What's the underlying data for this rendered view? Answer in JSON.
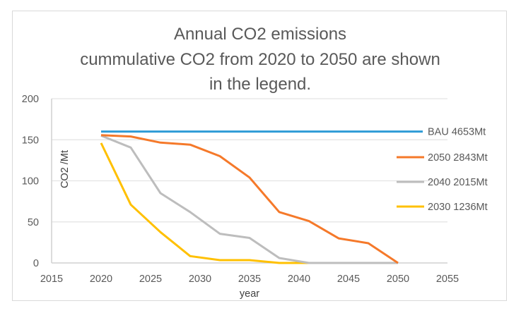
{
  "chart_data": {
    "type": "line",
    "title": [
      "Annual CO2 emissions",
      "cummulative CO2 from 2020 to 2050 are shown",
      "in the legend."
    ],
    "xlabel": "year",
    "ylabel": "CO2 /Mt",
    "xlim": [
      2015,
      2055
    ],
    "ylim": [
      0,
      200
    ],
    "xticks": [
      2015,
      2020,
      2025,
      2030,
      2035,
      2040,
      2045,
      2050,
      2055
    ],
    "yticks": [
      0,
      50,
      100,
      150,
      200
    ],
    "grid": "horizontal",
    "legend_position": "right",
    "series": [
      {
        "name": "BAU 4653Mt",
        "color": "#2e9bd6",
        "x": [
          2020,
          2052.5
        ],
        "y": [
          160,
          160
        ]
      },
      {
        "name": "2050 2843Mt",
        "color": "#f5792a",
        "x": [
          2020,
          2023,
          2026,
          2029,
          2032,
          2035,
          2038,
          2041,
          2044,
          2047,
          2050
        ],
        "y": [
          155.5,
          154,
          146.5,
          144,
          130,
          104,
          62,
          51,
          30,
          24,
          0
        ]
      },
      {
        "name": "2040 2015Mt",
        "color": "#bdbdbd",
        "x": [
          2020,
          2023,
          2026,
          2029,
          2032,
          2035,
          2038,
          2041,
          2044,
          2047,
          2050
        ],
        "y": [
          155,
          140.5,
          85,
          62,
          35.5,
          30.5,
          6,
          0,
          0,
          0,
          0
        ]
      },
      {
        "name": "2030 1236Mt",
        "color": "#ffc000",
        "x": [
          2020,
          2023,
          2026,
          2029,
          2032,
          2035,
          2038,
          2041,
          2044,
          2047,
          2050
        ],
        "y": [
          146,
          71,
          37.5,
          8.3,
          3.4,
          3.4,
          0,
          0,
          0,
          0,
          0
        ]
      }
    ]
  }
}
